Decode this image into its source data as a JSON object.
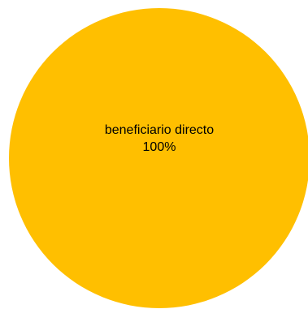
{
  "chart_data": {
    "type": "pie",
    "title": "",
    "slices": [
      {
        "label": "beneficiario directo",
        "value": 100,
        "value_label": "100%",
        "color": "#FFBF00"
      }
    ],
    "legend": "none",
    "data_labels": "inside"
  }
}
